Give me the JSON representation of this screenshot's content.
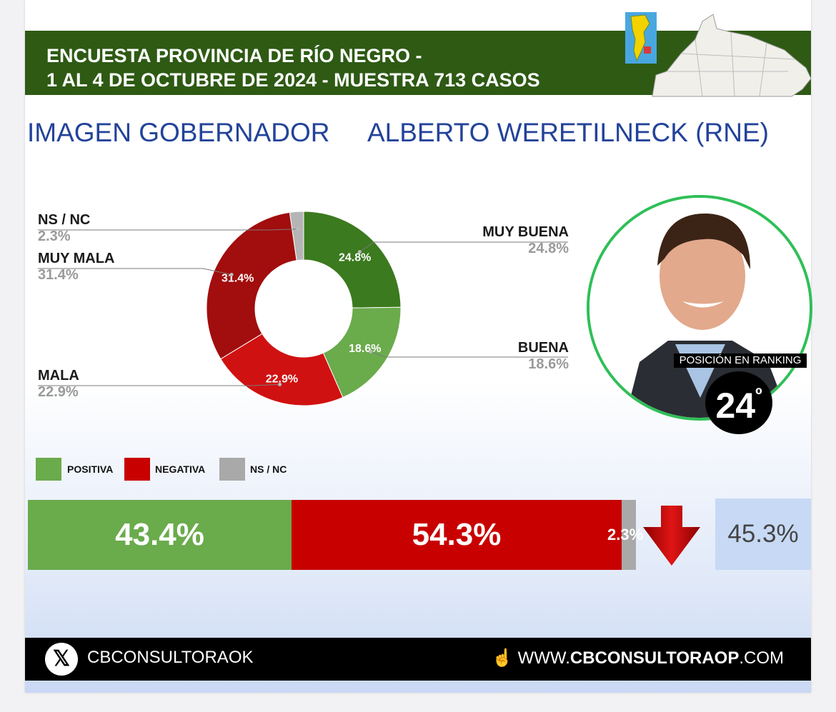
{
  "header": {
    "line1": "ENCUESTA PROVINCIA DE RÍO NEGRO -",
    "line2": "1 AL 4 DE OCTUBRE DE 2024 - MUESTRA 713 CASOS"
  },
  "titles": {
    "left": "IMAGEN GOBERNADOR",
    "right": "ALBERTO WERETILNECK (RNE)"
  },
  "chart_data": [
    {
      "type": "pie",
      "variant": "donut",
      "slices": [
        {
          "name": "MUY BUENA",
          "value": 24.8,
          "label": "24.8%",
          "color": "#3b7a1e"
        },
        {
          "name": "BUENA",
          "value": 18.6,
          "label": "18.6%",
          "color": "#6aab4c"
        },
        {
          "name": "MALA",
          "value": 22.9,
          "label": "22.9%",
          "color": "#d01111"
        },
        {
          "name": "MUY MALA",
          "value": 31.4,
          "label": "31.4%",
          "color": "#a20d0d"
        },
        {
          "name": "NS / NC",
          "value": 2.3,
          "label": "2.3%",
          "color": "#b5b5b5"
        }
      ]
    },
    {
      "type": "bar",
      "orientation": "horizontal-stacked",
      "segments": [
        {
          "name": "POSITIVA",
          "value": 43.4,
          "label": "43.4%",
          "color": "#6aab4c"
        },
        {
          "name": "NEGATIVA",
          "value": 54.3,
          "label": "54.3%",
          "color": "#c80000"
        },
        {
          "name": "NS / NC",
          "value": 2.3,
          "label": "2.3%",
          "color": "#a9a9a9"
        }
      ],
      "legend": [
        "POSITIVA",
        "NEGATIVA",
        "NS / NC"
      ]
    }
  ],
  "ranking": {
    "label": "POSICIÓN EN RANKING",
    "number": "24",
    "suffix": "º"
  },
  "trend": {
    "direction": "down",
    "value": "45.3%"
  },
  "footer": {
    "handle": "CBCONSULTORAOK",
    "web_prefix": "WWW.",
    "web_bold": "CBCONSULTORAOP",
    "web_suffix": ".COM"
  },
  "icons": {
    "social": "x-logo-icon",
    "web": "hand-pointer-icon",
    "trend": "down-arrow-icon"
  }
}
